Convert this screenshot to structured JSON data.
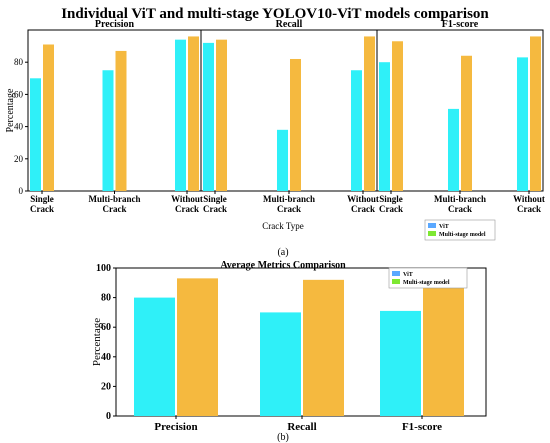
{
  "figure_title": "Individual ViT and multi-stage YOLOV10-ViT models comparison",
  "colors": {
    "vit": "#2ff0f8",
    "multi": "#f5b93f",
    "legend_multi_swatch": "#7ee832",
    "legend_vit_swatch": "#5aa8ff"
  },
  "chart_data": [
    {
      "type": "bar",
      "panel_label": "(a)",
      "ylabel": "Percentage",
      "xlabel": "Crack Type",
      "ylim": [
        0,
        100
      ],
      "yticks": [
        0,
        20,
        40,
        60,
        80
      ],
      "grid": false,
      "legend": {
        "position": "bottom-right",
        "entries": [
          "ViT",
          "Multi-stage model"
        ]
      },
      "subplots": [
        {
          "title": "Precision",
          "categories": [
            "Single Crack",
            "Multi-branch Crack",
            "Without Crack"
          ],
          "series": [
            {
              "name": "ViT",
              "values": [
                70,
                75,
                94
              ]
            },
            {
              "name": "Multi-stage model",
              "values": [
                91,
                87,
                96
              ]
            }
          ]
        },
        {
          "title": "Recall",
          "categories": [
            "Single Crack",
            "Multi-branch Crack",
            "Without Crack"
          ],
          "series": [
            {
              "name": "ViT",
              "values": [
                92,
                38,
                75
              ]
            },
            {
              "name": "Multi-stage model",
              "values": [
                94,
                82,
                96
              ]
            }
          ]
        },
        {
          "title": "F1-score",
          "categories": [
            "Single Crack",
            "Multi-branch Crack",
            "Without Crack"
          ],
          "series": [
            {
              "name": "ViT",
              "values": [
                80,
                51,
                83
              ]
            },
            {
              "name": "Multi-stage model",
              "values": [
                93,
                84,
                96
              ]
            }
          ]
        }
      ]
    },
    {
      "type": "bar",
      "panel_label": "(b)",
      "title": "Average Metrics Comparison",
      "ylabel": "Percentage",
      "ylim": [
        0,
        100
      ],
      "yticks": [
        0,
        20,
        40,
        60,
        80,
        100
      ],
      "grid": false,
      "legend": {
        "position": "top-right",
        "entries": [
          "ViT",
          "Multi-stage model"
        ]
      },
      "categories": [
        "Precision",
        "Recall",
        "F1-score"
      ],
      "series": [
        {
          "name": "ViT",
          "values": [
            80,
            70,
            71
          ]
        },
        {
          "name": "Multi-stage model",
          "values": [
            93,
            92,
            91
          ]
        }
      ]
    }
  ]
}
